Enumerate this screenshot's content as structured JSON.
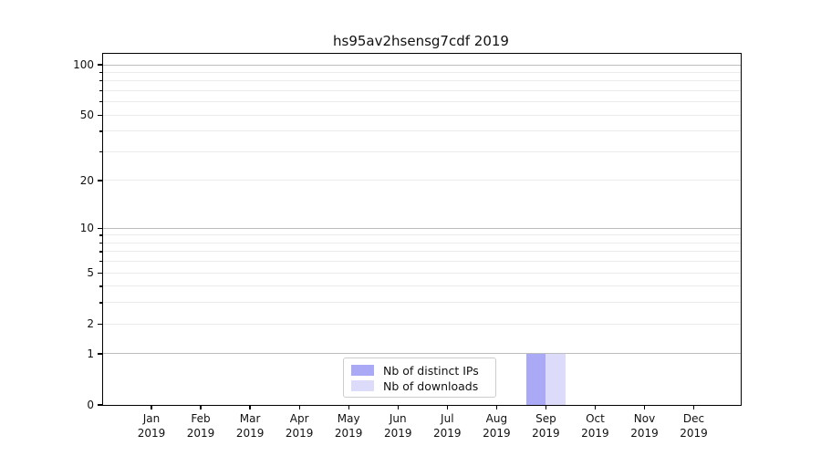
{
  "chart_data": {
    "type": "bar",
    "title": "hs95av2hsensg7cdf 2019",
    "categories": [
      "Jan 2019",
      "Feb 2019",
      "Mar 2019",
      "Apr 2019",
      "May 2019",
      "Jun 2019",
      "Jul 2019",
      "Aug 2019",
      "Sep 2019",
      "Oct 2019",
      "Nov 2019",
      "Dec 2019"
    ],
    "series": [
      {
        "name": "Nb of distinct IPs",
        "color": "#a9a9f6",
        "values": [
          0,
          0,
          0,
          0,
          0,
          0,
          0,
          0,
          1,
          0,
          0,
          0
        ]
      },
      {
        "name": "Nb of downloads",
        "color": "#dcdcfa",
        "values": [
          0,
          0,
          0,
          0,
          0,
          0,
          0,
          0,
          1,
          0,
          0,
          0
        ]
      }
    ],
    "yaxis": {
      "scale": "log1p",
      "ylim": [
        0,
        100
      ],
      "tick_values": [
        0,
        1,
        2,
        5,
        10,
        20,
        50,
        100
      ],
      "major_grid_values": [
        1,
        10,
        100
      ],
      "minor_grid_values": [
        2,
        3,
        4,
        5,
        6,
        7,
        8,
        9,
        20,
        30,
        40,
        50,
        60,
        70,
        80,
        90
      ],
      "grid": true
    },
    "xlabel": "",
    "ylabel": "",
    "legend_position": "lower center, inside plot",
    "colors": {
      "axis_spine": "#000000",
      "grid_major": "#bdbdbd",
      "grid_minor": "#ebebeb",
      "text": "#111111"
    }
  }
}
